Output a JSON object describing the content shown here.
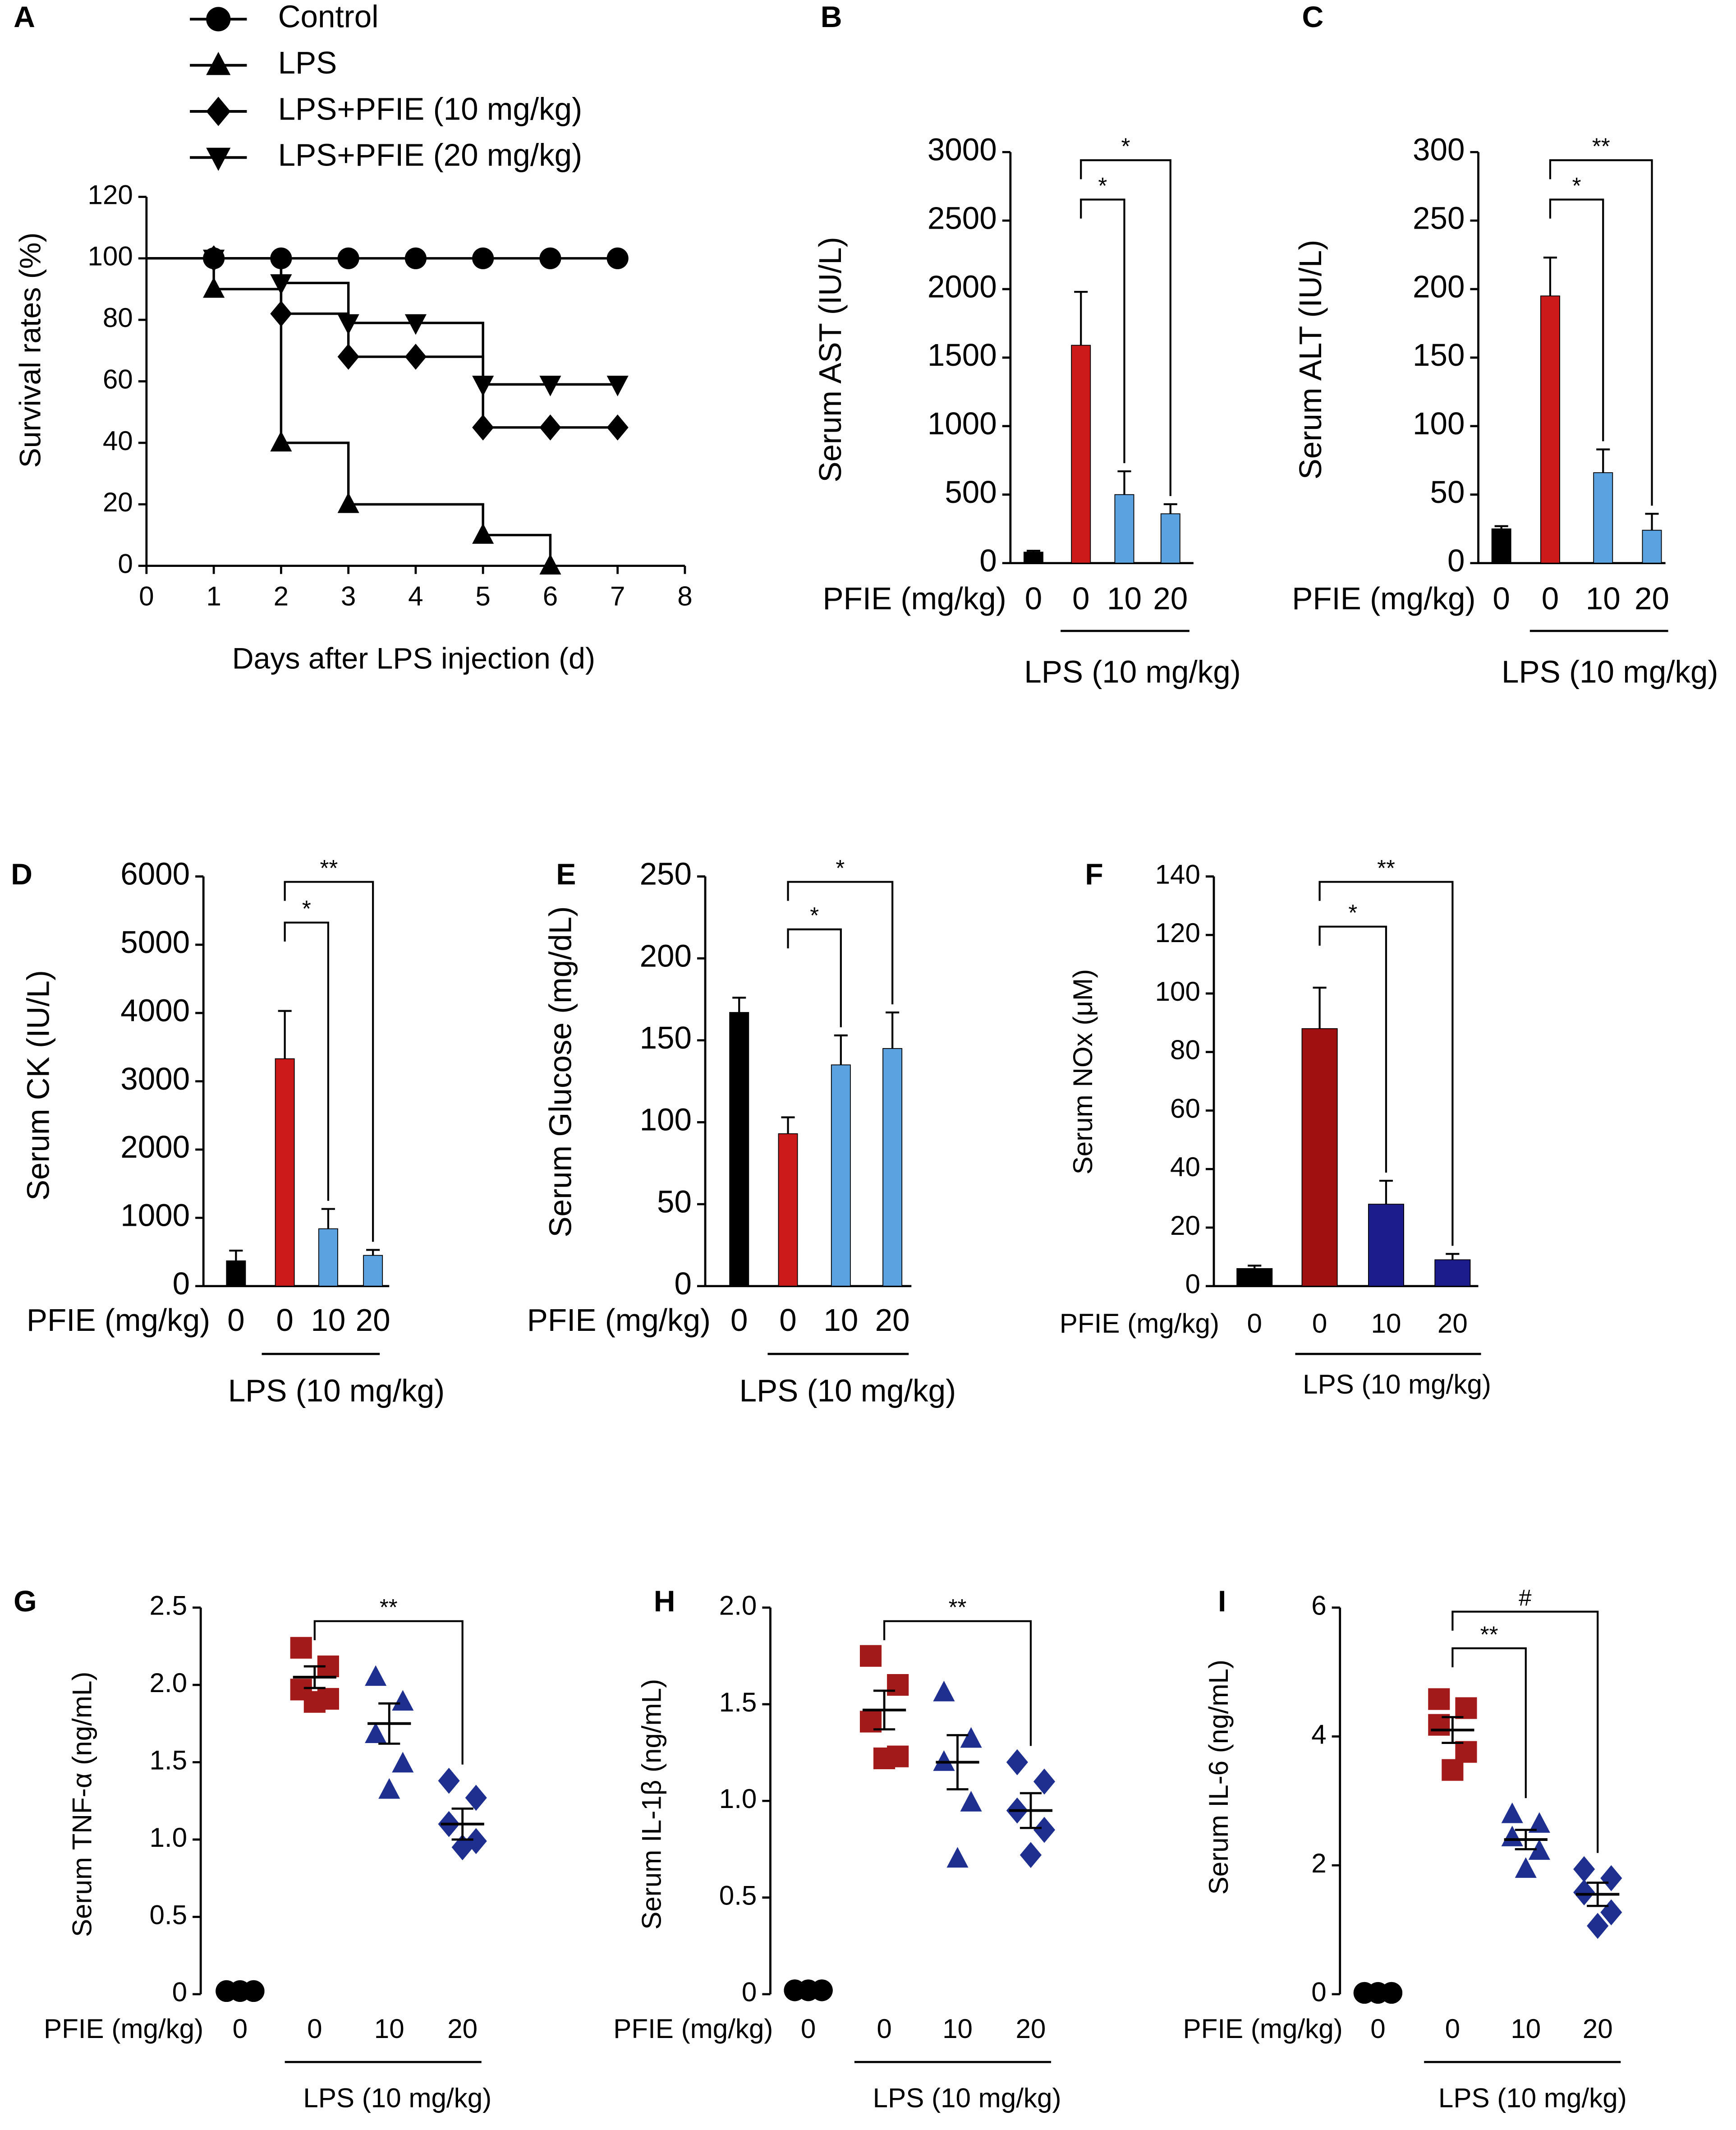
{
  "chart_data": [
    {
      "type": "line",
      "title": "A",
      "xlabel": "Days after LPS injection (d)",
      "ylabel": "Survival rates (%)",
      "xlim": [
        0,
        8
      ],
      "xticks": [
        0,
        1,
        2,
        3,
        4,
        5,
        6,
        7,
        8
      ],
      "ylim": [
        0,
        120
      ],
      "yticks": [
        0,
        20,
        40,
        60,
        80,
        100,
        120
      ],
      "series": [
        {
          "name": "Control",
          "marker": "circle",
          "color": "#000000",
          "x": [
            0,
            1,
            2,
            3,
            4,
            5,
            6,
            7
          ],
          "values": [
            100,
            100,
            100,
            100,
            100,
            100,
            100,
            100
          ]
        },
        {
          "name": "LPS",
          "marker": "triangle-up",
          "color": "#000000",
          "x": [
            0,
            1,
            2,
            3,
            5,
            6
          ],
          "values": [
            100,
            90,
            40,
            20,
            10,
            0
          ]
        },
        {
          "name": "LPS+PFIE (10 mg/kg)",
          "marker": "diamond",
          "color": "#000000",
          "x": [
            0,
            1,
            2,
            3,
            4,
            5,
            6,
            7
          ],
          "values": [
            100,
            100,
            82,
            68,
            68,
            45,
            45,
            45
          ]
        },
        {
          "name": "LPS+PFIE (20 mg/kg)",
          "marker": "triangle-down",
          "color": "#000000",
          "x": [
            0,
            1,
            2,
            3,
            4,
            5,
            6,
            7
          ],
          "values": [
            100,
            100,
            92,
            79,
            79,
            59,
            59,
            59
          ]
        }
      ]
    },
    {
      "type": "bar",
      "title": "B",
      "ylabel": "Serum AST (IU/L)",
      "xlabel": "PFIE (mg/kg)",
      "group_label": "LPS (10 mg/kg)",
      "categories": [
        "0",
        "0",
        "10",
        "20"
      ],
      "values": [
        80,
        1590,
        500,
        360
      ],
      "errors": [
        10,
        390,
        170,
        70
      ],
      "colors": [
        "#000000",
        "#cc1a1a",
        "#5ba3e0",
        "#5ba3e0"
      ],
      "ylim": [
        0,
        3000
      ],
      "yticks": [
        0,
        500,
        1000,
        1500,
        2000,
        2500,
        3000
      ],
      "annotations": [
        "*",
        "*"
      ]
    },
    {
      "type": "bar",
      "title": "C",
      "ylabel": "Serum ALT (IU/L)",
      "xlabel": "PFIE (mg/kg)",
      "group_label": "LPS (10 mg/kg)",
      "categories": [
        "0",
        "0",
        "10",
        "20"
      ],
      "values": [
        25,
        195,
        66,
        24
      ],
      "errors": [
        2,
        28,
        17,
        12
      ],
      "colors": [
        "#000000",
        "#cc1a1a",
        "#5ba3e0",
        "#5ba3e0"
      ],
      "ylim": [
        0,
        300
      ],
      "yticks": [
        0,
        50,
        100,
        150,
        200,
        250,
        300
      ],
      "annotations": [
        "*",
        "**"
      ]
    },
    {
      "type": "bar",
      "title": "D",
      "ylabel": "Serum CK (IU/L)",
      "xlabel": "PFIE (mg/kg)",
      "group_label": "LPS (10 mg/kg)",
      "categories": [
        "0",
        "0",
        "10",
        "20"
      ],
      "values": [
        370,
        3330,
        840,
        450
      ],
      "errors": [
        150,
        700,
        290,
        80
      ],
      "colors": [
        "#000000",
        "#cc1a1a",
        "#5ba3e0",
        "#5ba3e0"
      ],
      "ylim": [
        0,
        6000
      ],
      "yticks": [
        0,
        1000,
        2000,
        3000,
        4000,
        5000,
        6000
      ],
      "annotations": [
        "*",
        "**"
      ]
    },
    {
      "type": "bar",
      "title": "E",
      "ylabel": "Serum Glucose (mg/dL)",
      "xlabel": "PFIE (mg/kg)",
      "group_label": "LPS (10 mg/kg)",
      "categories": [
        "0",
        "0",
        "10",
        "20"
      ],
      "values": [
        167,
        93,
        135,
        145
      ],
      "errors": [
        9,
        10,
        18,
        22
      ],
      "colors": [
        "#000000",
        "#cc1a1a",
        "#5ba3e0",
        "#5ba3e0"
      ],
      "ylim": [
        0,
        250
      ],
      "yticks": [
        0,
        50,
        100,
        150,
        200,
        250
      ],
      "annotations": [
        "*",
        "*"
      ]
    },
    {
      "type": "bar",
      "title": "F",
      "ylabel": "Serum NOx (μM)",
      "xlabel": "PFIE (mg/kg)",
      "group_label": "LPS (10 mg/kg)",
      "categories": [
        "0",
        "0",
        "10",
        "20"
      ],
      "values": [
        6,
        88,
        28,
        9
      ],
      "errors": [
        1,
        14,
        8,
        2
      ],
      "colors": [
        "#000000",
        "#a01010",
        "#1c1c8c",
        "#1c1c8c"
      ],
      "ylim": [
        0,
        140
      ],
      "yticks": [
        0,
        20,
        40,
        60,
        80,
        100,
        120,
        140
      ],
      "annotations": [
        "*",
        "**"
      ]
    },
    {
      "type": "dot",
      "title": "G",
      "ylabel": "Serum TNF-α (ng/mL)",
      "xlabel": "PFIE (mg/kg)",
      "group_label": "LPS (10 mg/kg)",
      "categories": [
        "0",
        "0",
        "10",
        "20"
      ],
      "points": [
        [
          0.02,
          0.02,
          0.02,
          0.02,
          0.02
        ],
        [
          2.24,
          2.12,
          1.97,
          1.91,
          1.89
        ],
        [
          2.05,
          1.89,
          1.68,
          1.49,
          1.32
        ],
        [
          1.38,
          1.27,
          1.1,
          0.99,
          0.95
        ]
      ],
      "means": [
        0.02,
        2.05,
        1.75,
        1.1
      ],
      "sems": [
        0,
        0.07,
        0.13,
        0.1
      ],
      "colors": [
        "#000000",
        "#a31a1a",
        "#1f2f8f",
        "#1f2f8f"
      ],
      "markers": [
        "circle",
        "square",
        "triangle-up",
        "diamond"
      ],
      "ylim": [
        0,
        2.5
      ],
      "yticks": [
        0,
        0.5,
        {
          "value": 1,
          "label": "1.0"
        },
        1.5,
        {
          "value": 2,
          "label": "2.0"
        },
        2.5
      ],
      "annotations": [
        "**"
      ]
    },
    {
      "type": "dot",
      "title": "H",
      "ylabel": "Serum IL-1β (ng/mL)",
      "xlabel": "PFIE (mg/kg)",
      "group_label": "LPS (10 mg/kg)",
      "categories": [
        "0",
        "0",
        "10",
        "20"
      ],
      "points": [
        [
          0.02,
          0.02,
          0.02,
          0.02,
          0.02
        ],
        [
          1.75,
          1.6,
          1.41,
          1.23,
          1.22
        ],
        [
          1.56,
          1.32,
          1.2,
          0.99,
          0.7
        ],
        [
          1.2,
          1.1,
          0.95,
          0.85,
          0.72
        ]
      ],
      "means": [
        0.02,
        1.47,
        1.2,
        0.95
      ],
      "sems": [
        0,
        0.1,
        0.14,
        0.09
      ],
      "colors": [
        "#000000",
        "#a31a1a",
        "#1f2f8f",
        "#1f2f8f"
      ],
      "markers": [
        "circle",
        "square",
        "triangle-up",
        "diamond"
      ],
      "ylim": [
        0,
        2
      ],
      "yticks": [
        0,
        0.5,
        {
          "value": 1,
          "label": "1.0"
        },
        1.5,
        {
          "value": 2,
          "label": "2.0"
        }
      ],
      "annotations": [
        "**"
      ]
    },
    {
      "type": "dot",
      "title": "I",
      "ylabel": "Serum IL-6 (ng/mL)",
      "xlabel": "PFIE (mg/kg)",
      "group_label": "LPS (10 mg/kg)",
      "categories": [
        "0",
        "0",
        "10",
        "20"
      ],
      "points": [
        [
          0.02,
          0.02,
          0.02,
          0.02,
          0.02
        ],
        [
          4.58,
          4.44,
          4.18,
          3.76,
          3.48
        ],
        [
          2.79,
          2.64,
          2.43,
          2.22,
          1.94
        ],
        [
          1.94,
          1.8,
          1.58,
          1.27,
          1.06
        ]
      ],
      "means": [
        0.02,
        4.1,
        2.4,
        1.55
      ],
      "sems": [
        0,
        0.2,
        0.15,
        0.18
      ],
      "colors": [
        "#000000",
        "#a31a1a",
        "#1f2f8f",
        "#1f2f8f"
      ],
      "markers": [
        "circle",
        "square",
        "triangle-up",
        "diamond"
      ],
      "ylim": [
        0,
        6
      ],
      "yticks": [
        0,
        2,
        4,
        6
      ],
      "annotations": [
        "**",
        "#"
      ]
    }
  ]
}
